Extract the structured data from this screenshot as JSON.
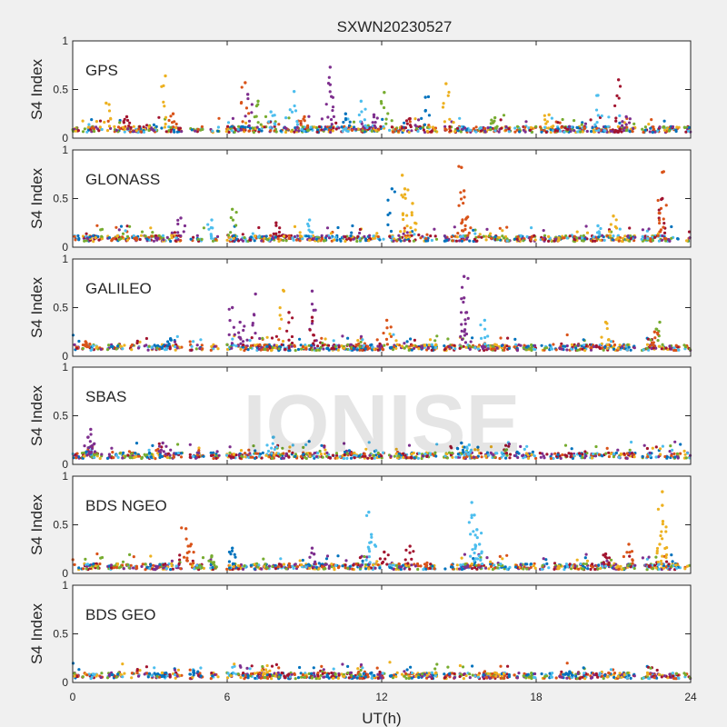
{
  "chart_data": {
    "type": "scatter",
    "title": "SXWN20230527",
    "xlabel": "UT(h)",
    "ylabel": "S4 Index",
    "xlim": [
      0,
      24
    ],
    "ylim": [
      0,
      1
    ],
    "x_ticks": [
      0,
      6,
      12,
      18,
      24
    ],
    "y_ticks": [
      0,
      0.5,
      1
    ],
    "y_tick_labels": [
      "0",
      "0.5",
      "1"
    ],
    "watermark": "IONISE",
    "series_colors": [
      "#0072BD",
      "#D95319",
      "#EDB120",
      "#7E2F8E",
      "#77AC30",
      "#4DBEEE",
      "#A2142F"
    ],
    "panels": [
      {
        "label": "GPS",
        "baseline": 0.09,
        "spikes": [
          {
            "x": 1.3,
            "y": 0.36,
            "c": 2
          },
          {
            "x": 2.1,
            "y": 0.22,
            "c": 6
          },
          {
            "x": 3.6,
            "y": 0.64,
            "c": 2
          },
          {
            "x": 3.9,
            "y": 0.25,
            "c": 1
          },
          {
            "x": 6.7,
            "y": 0.57,
            "c": 1
          },
          {
            "x": 6.8,
            "y": 0.45,
            "c": 3
          },
          {
            "x": 7.2,
            "y": 0.38,
            "c": 4
          },
          {
            "x": 7.7,
            "y": 0.27,
            "c": 5
          },
          {
            "x": 8.6,
            "y": 0.48,
            "c": 5
          },
          {
            "x": 9.0,
            "y": 0.22,
            "c": 1
          },
          {
            "x": 10.0,
            "y": 0.73,
            "c": 3
          },
          {
            "x": 10.0,
            "y": 0.55,
            "c": 3
          },
          {
            "x": 10.6,
            "y": 0.25,
            "c": 0
          },
          {
            "x": 11.2,
            "y": 0.38,
            "c": 5
          },
          {
            "x": 11.7,
            "y": 0.24,
            "c": 3
          },
          {
            "x": 12.1,
            "y": 0.47,
            "c": 4
          },
          {
            "x": 13.1,
            "y": 0.2,
            "c": 6
          },
          {
            "x": 13.7,
            "y": 0.42,
            "c": 0
          },
          {
            "x": 14.5,
            "y": 0.56,
            "c": 2
          },
          {
            "x": 16.4,
            "y": 0.21,
            "c": 4
          },
          {
            "x": 18.5,
            "y": 0.24,
            "c": 2
          },
          {
            "x": 20.4,
            "y": 0.44,
            "c": 5
          },
          {
            "x": 21.2,
            "y": 0.6,
            "c": 6
          },
          {
            "x": 21.5,
            "y": 0.22,
            "c": 3
          }
        ]
      },
      {
        "label": "GLONASS",
        "baseline": 0.09,
        "spikes": [
          {
            "x": 4.2,
            "y": 0.3,
            "c": 3
          },
          {
            "x": 5.4,
            "y": 0.28,
            "c": 5
          },
          {
            "x": 6.2,
            "y": 0.39,
            "c": 4
          },
          {
            "x": 7.9,
            "y": 0.25,
            "c": 6
          },
          {
            "x": 9.2,
            "y": 0.28,
            "c": 5
          },
          {
            "x": 12.4,
            "y": 0.6,
            "c": 0
          },
          {
            "x": 12.8,
            "y": 0.74,
            "c": 2
          },
          {
            "x": 12.9,
            "y": 0.6,
            "c": 2
          },
          {
            "x": 13.2,
            "y": 0.45,
            "c": 2
          },
          {
            "x": 15.1,
            "y": 0.82,
            "c": 1
          },
          {
            "x": 15.2,
            "y": 0.58,
            "c": 1
          },
          {
            "x": 15.3,
            "y": 0.3,
            "c": 1
          },
          {
            "x": 20.4,
            "y": 0.22,
            "c": 5
          },
          {
            "x": 21.0,
            "y": 0.32,
            "c": 2
          },
          {
            "x": 22.9,
            "y": 0.77,
            "c": 1
          },
          {
            "x": 22.9,
            "y": 0.5,
            "c": 6
          },
          {
            "x": 22.8,
            "y": 0.35,
            "c": 1
          }
        ]
      },
      {
        "label": "GALILEO",
        "baseline": 0.09,
        "spikes": [
          {
            "x": 0.5,
            "y": 0.15,
            "c": 1
          },
          {
            "x": 3.8,
            "y": 0.18,
            "c": 0
          },
          {
            "x": 6.2,
            "y": 0.5,
            "c": 3
          },
          {
            "x": 6.5,
            "y": 0.35,
            "c": 3
          },
          {
            "x": 7.1,
            "y": 0.64,
            "c": 3
          },
          {
            "x": 8.2,
            "y": 0.67,
            "c": 2
          },
          {
            "x": 8.4,
            "y": 0.45,
            "c": 6
          },
          {
            "x": 9.3,
            "y": 0.67,
            "c": 3
          },
          {
            "x": 9.3,
            "y": 0.4,
            "c": 6
          },
          {
            "x": 12.2,
            "y": 0.37,
            "c": 1
          },
          {
            "x": 15.2,
            "y": 0.82,
            "c": 3
          },
          {
            "x": 15.2,
            "y": 0.6,
            "c": 3
          },
          {
            "x": 15.3,
            "y": 0.45,
            "c": 3
          },
          {
            "x": 16.0,
            "y": 0.37,
            "c": 5
          },
          {
            "x": 20.7,
            "y": 0.35,
            "c": 2
          },
          {
            "x": 22.8,
            "y": 0.35,
            "c": 4
          },
          {
            "x": 22.6,
            "y": 0.25,
            "c": 1
          }
        ]
      },
      {
        "label": "SBAS",
        "baseline": 0.09,
        "spikes": [
          {
            "x": 0.7,
            "y": 0.36,
            "c": 3
          },
          {
            "x": 0.6,
            "y": 0.28,
            "c": 3
          },
          {
            "x": 3.5,
            "y": 0.22,
            "c": 3
          },
          {
            "x": 7.8,
            "y": 0.28,
            "c": 5
          },
          {
            "x": 15.1,
            "y": 0.22,
            "c": 0
          },
          {
            "x": 15.4,
            "y": 0.2,
            "c": 5
          }
        ]
      },
      {
        "label": "BDS NGEO",
        "baseline": 0.07,
        "spikes": [
          {
            "x": 4.4,
            "y": 0.46,
            "c": 1
          },
          {
            "x": 4.6,
            "y": 0.3,
            "c": 1
          },
          {
            "x": 5.4,
            "y": 0.18,
            "c": 4
          },
          {
            "x": 6.2,
            "y": 0.26,
            "c": 0
          },
          {
            "x": 9.3,
            "y": 0.26,
            "c": 3
          },
          {
            "x": 11.5,
            "y": 0.63,
            "c": 5
          },
          {
            "x": 11.6,
            "y": 0.4,
            "c": 5
          },
          {
            "x": 12.1,
            "y": 0.22,
            "c": 6
          },
          {
            "x": 13.1,
            "y": 0.28,
            "c": 6
          },
          {
            "x": 15.5,
            "y": 0.73,
            "c": 5
          },
          {
            "x": 15.6,
            "y": 0.6,
            "c": 5
          },
          {
            "x": 15.7,
            "y": 0.45,
            "c": 5
          },
          {
            "x": 15.8,
            "y": 0.3,
            "c": 5
          },
          {
            "x": 20.7,
            "y": 0.2,
            "c": 6
          },
          {
            "x": 21.6,
            "y": 0.3,
            "c": 1
          },
          {
            "x": 22.9,
            "y": 0.84,
            "c": 2
          },
          {
            "x": 22.9,
            "y": 0.7,
            "c": 2
          },
          {
            "x": 22.8,
            "y": 0.3,
            "c": 2
          }
        ]
      },
      {
        "label": "BDS GEO",
        "baseline": 0.07,
        "spikes": [
          {
            "x": 4.7,
            "y": 0.12,
            "c": 0
          },
          {
            "x": 7.5,
            "y": 0.13,
            "c": 2
          },
          {
            "x": 19.3,
            "y": 0.11,
            "c": 0
          }
        ]
      }
    ],
    "observation_gaps_h": [
      [
        0.25,
        0.35
      ],
      [
        1.15,
        1.35
      ],
      [
        4.25,
        4.55
      ],
      [
        5.1,
        5.35
      ],
      [
        5.7,
        5.95
      ],
      [
        12.1,
        12.3
      ],
      [
        14.15,
        14.4
      ],
      [
        17.0,
        17.15
      ],
      [
        18.0,
        18.15
      ],
      [
        20.0,
        20.1
      ],
      [
        21.85,
        22.1
      ],
      [
        23.6,
        23.75
      ]
    ]
  }
}
